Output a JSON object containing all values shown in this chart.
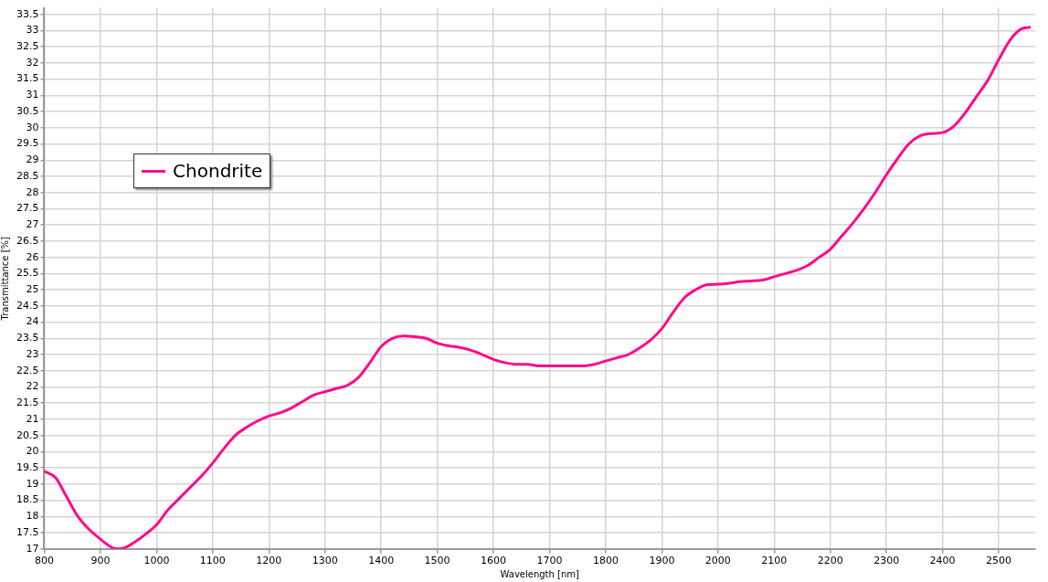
{
  "chart_data": {
    "type": "line",
    "xlabel": "Wavelength [nm]",
    "ylabel": "Transmittance [%]",
    "xlim": [
      800,
      2565
    ],
    "ylim": [
      17,
      33.7
    ],
    "xticks": [
      800,
      900,
      1000,
      1100,
      1200,
      1300,
      1400,
      1500,
      1600,
      1700,
      1800,
      1900,
      2000,
      2100,
      2200,
      2300,
      2400,
      2500
    ],
    "yticks": [
      17,
      17.5,
      18,
      18.5,
      19,
      19.5,
      20,
      20.5,
      21,
      21.5,
      22,
      22.5,
      23,
      23.5,
      24,
      24.5,
      25,
      25.5,
      26,
      26.5,
      27,
      27.5,
      28,
      28.5,
      29,
      29.5,
      30,
      30.5,
      31,
      31.5,
      32,
      32.5,
      33,
      33.5
    ],
    "grid": true,
    "legend": "top left",
    "marker": "none",
    "line_style": "solid",
    "x": [
      800,
      820,
      840,
      860,
      880,
      900,
      920,
      930,
      945,
      960,
      980,
      1000,
      1020,
      1040,
      1060,
      1080,
      1100,
      1120,
      1140,
      1160,
      1180,
      1200,
      1220,
      1240,
      1260,
      1280,
      1300,
      1320,
      1340,
      1360,
      1380,
      1400,
      1420,
      1440,
      1460,
      1480,
      1500,
      1520,
      1540,
      1560,
      1580,
      1600,
      1620,
      1640,
      1660,
      1680,
      1700,
      1720,
      1740,
      1760,
      1780,
      1800,
      1820,
      1840,
      1860,
      1880,
      1900,
      1920,
      1940,
      1960,
      1980,
      2000,
      2020,
      2040,
      2060,
      2080,
      2100,
      2120,
      2140,
      2160,
      2180,
      2200,
      2220,
      2240,
      2260,
      2280,
      2300,
      2320,
      2340,
      2360,
      2380,
      2400,
      2420,
      2440,
      2460,
      2480,
      2500,
      2520,
      2540,
      2555
    ],
    "series": [
      {
        "name": "Chondrite",
        "color": "#ff0a8c",
        "values": [
          19.4,
          19.2,
          18.6,
          18.0,
          17.6,
          17.3,
          17.05,
          17.0,
          17.05,
          17.2,
          17.45,
          17.75,
          18.2,
          18.55,
          18.9,
          19.25,
          19.65,
          20.1,
          20.5,
          20.75,
          20.95,
          21.1,
          21.2,
          21.35,
          21.55,
          21.75,
          21.85,
          21.95,
          22.05,
          22.3,
          22.75,
          23.25,
          23.5,
          23.57,
          23.55,
          23.5,
          23.35,
          23.27,
          23.22,
          23.13,
          23.0,
          22.85,
          22.75,
          22.7,
          22.7,
          22.65,
          22.65,
          22.65,
          22.65,
          22.65,
          22.7,
          22.8,
          22.9,
          23.0,
          23.2,
          23.45,
          23.8,
          24.3,
          24.75,
          25.0,
          25.15,
          25.17,
          25.2,
          25.25,
          25.27,
          25.3,
          25.4,
          25.5,
          25.6,
          25.75,
          26.0,
          26.25,
          26.65,
          27.05,
          27.5,
          28.0,
          28.55,
          29.05,
          29.5,
          29.75,
          29.82,
          29.85,
          30.05,
          30.45,
          30.95,
          31.45,
          32.1,
          32.7,
          33.05,
          33.1
        ]
      }
    ]
  }
}
